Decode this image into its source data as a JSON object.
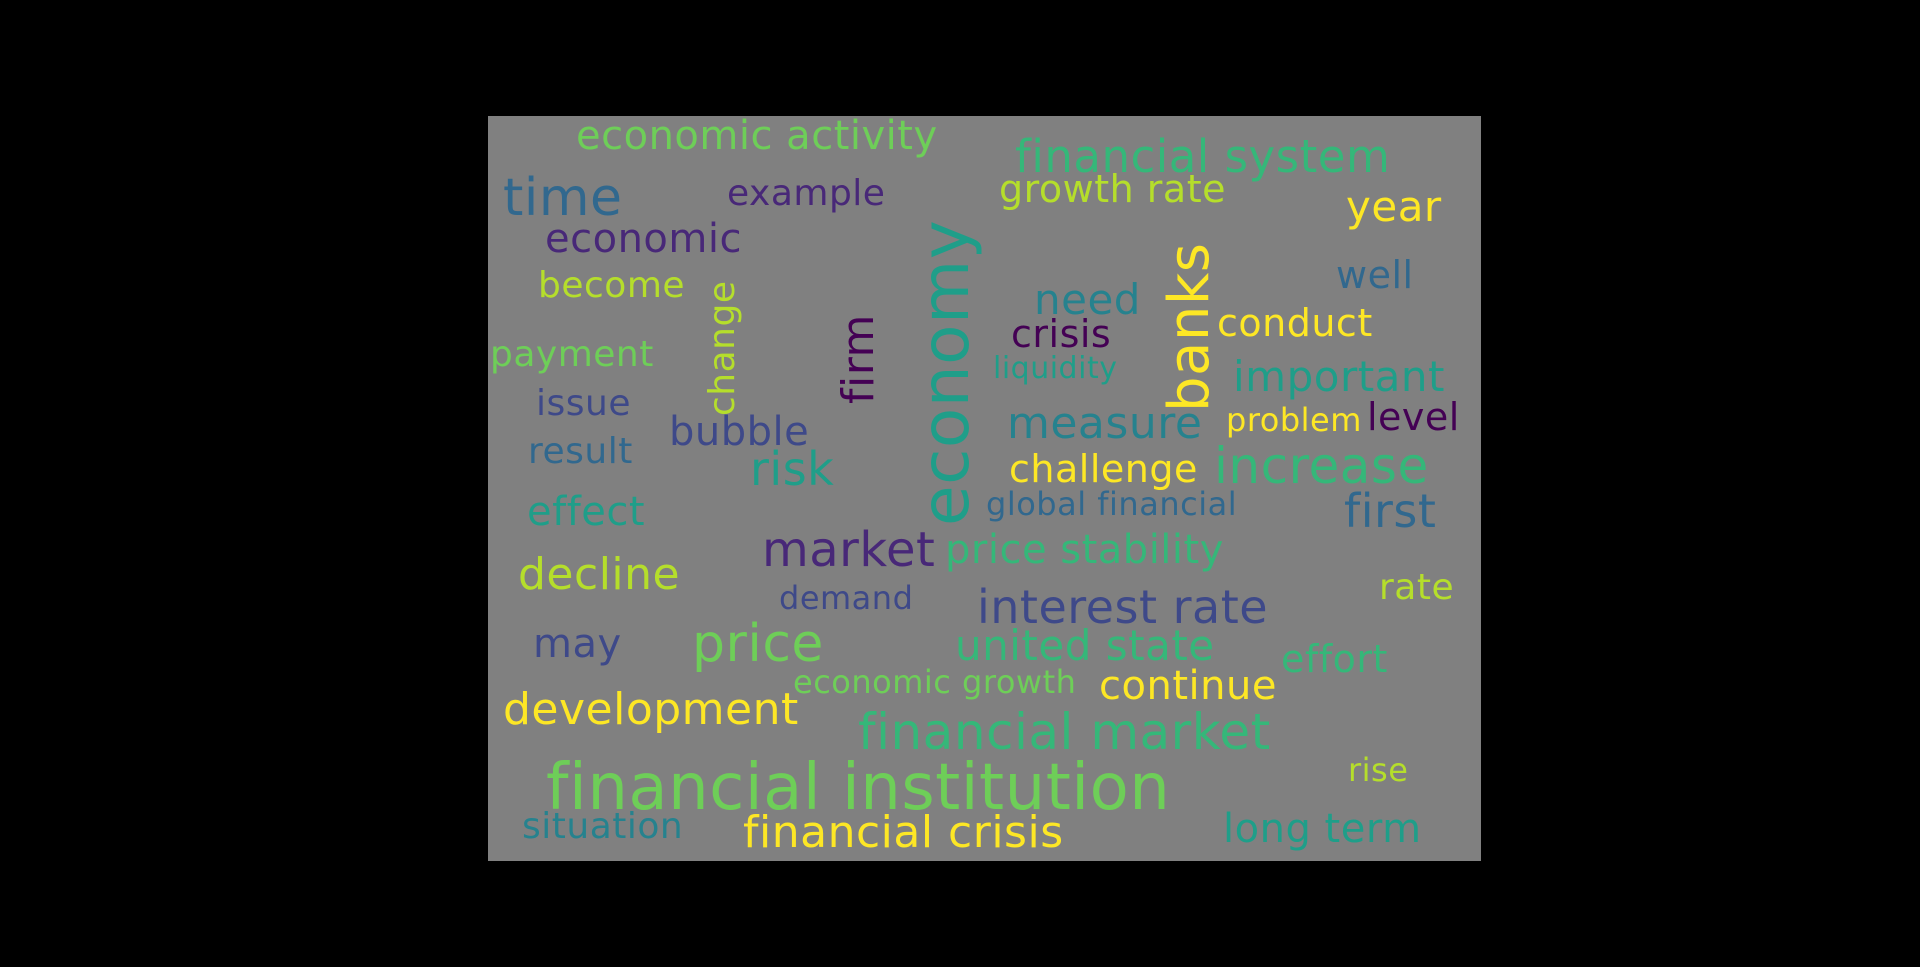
{
  "palette": {
    "yellow": "#fde725",
    "lime": "#b5de2b",
    "green": "#6ece58",
    "teal_green": "#35b779",
    "teal": "#1f9e89",
    "cyan_blue": "#26828e",
    "blue": "#31688e",
    "indigo": "#3e4989",
    "purple": "#482878",
    "dark_purple": "#440154"
  },
  "words": [
    {
      "text": "economic activity",
      "color": "#6ece58"
    },
    {
      "text": "financial system",
      "color": "#35b779"
    },
    {
      "text": "time",
      "color": "#31688e"
    },
    {
      "text": "example",
      "color": "#482878"
    },
    {
      "text": "growth rate",
      "color": "#b5de2b"
    },
    {
      "text": "year",
      "color": "#fde725"
    },
    {
      "text": "economic",
      "color": "#482878"
    },
    {
      "text": "economy",
      "color": "#1f9e89"
    },
    {
      "text": "banks",
      "color": "#fde725"
    },
    {
      "text": "well",
      "color": "#31688e"
    },
    {
      "text": "become",
      "color": "#b5de2b"
    },
    {
      "text": "change",
      "color": "#b5de2b"
    },
    {
      "text": "firm",
      "color": "#440154"
    },
    {
      "text": "need",
      "color": "#26828e"
    },
    {
      "text": "conduct",
      "color": "#fde725"
    },
    {
      "text": "crisis",
      "color": "#440154"
    },
    {
      "text": "payment",
      "color": "#6ece58"
    },
    {
      "text": "liquidity",
      "color": "#1f9e89"
    },
    {
      "text": "important",
      "color": "#1f9e89"
    },
    {
      "text": "issue",
      "color": "#3e4989"
    },
    {
      "text": "problem",
      "color": "#fde725"
    },
    {
      "text": "level",
      "color": "#440154"
    },
    {
      "text": "measure",
      "color": "#26828e"
    },
    {
      "text": "bubble",
      "color": "#3e4989"
    },
    {
      "text": "result",
      "color": "#31688e"
    },
    {
      "text": "challenge",
      "color": "#fde725"
    },
    {
      "text": "increase",
      "color": "#35b779"
    },
    {
      "text": "risk",
      "color": "#1f9e89"
    },
    {
      "text": "global financial",
      "color": "#31688e"
    },
    {
      "text": "first",
      "color": "#31688e"
    },
    {
      "text": "effect",
      "color": "#1f9e89"
    },
    {
      "text": "market",
      "color": "#482878"
    },
    {
      "text": "price stability",
      "color": "#35b779"
    },
    {
      "text": "decline",
      "color": "#b5de2b"
    },
    {
      "text": "rate",
      "color": "#b5de2b"
    },
    {
      "text": "demand",
      "color": "#3e4989"
    },
    {
      "text": "interest rate",
      "color": "#3e4989"
    },
    {
      "text": "may",
      "color": "#3e4989"
    },
    {
      "text": "price",
      "color": "#6ece58"
    },
    {
      "text": "united state",
      "color": "#35b779"
    },
    {
      "text": "effort",
      "color": "#35b779"
    },
    {
      "text": "economic growth",
      "color": "#6ece58"
    },
    {
      "text": "continue",
      "color": "#fde725"
    },
    {
      "text": "development",
      "color": "#fde725"
    },
    {
      "text": "financial market",
      "color": "#35b779"
    },
    {
      "text": "financial institution",
      "color": "#6ece58"
    },
    {
      "text": "rise",
      "color": "#b5de2b"
    },
    {
      "text": "situation",
      "color": "#26828e"
    },
    {
      "text": "financial crisis",
      "color": "#fde725"
    },
    {
      "text": "long term",
      "color": "#1f9e89"
    }
  ]
}
